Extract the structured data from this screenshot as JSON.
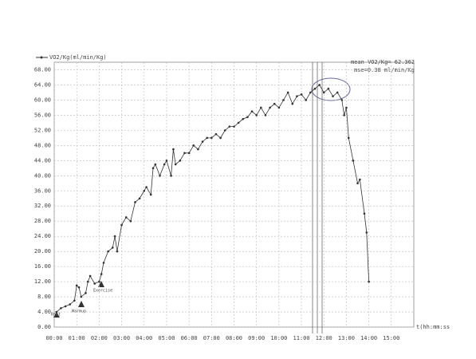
{
  "chart_data": {
    "type": "line",
    "legend_label": "VO2/Kg(ml/min/Kg)",
    "x_label": "t(hh:mm:ss",
    "annotations": [
      "mean VO2/Kg= 62.362",
      "mse=0.38 ml/min/Kg"
    ],
    "phase_labels": [
      "Rest",
      "Warmup",
      "Exercise"
    ],
    "series": [
      {
        "name": "VO2/Kg(ml/min/Kg)",
        "color": "#333333",
        "x": [
          0.1,
          0.3,
          0.5,
          0.7,
          0.9,
          1.0,
          1.1,
          1.2,
          1.4,
          1.5,
          1.6,
          1.8,
          2.0,
          2.1,
          2.2,
          2.4,
          2.6,
          2.7,
          2.8,
          3.0,
          3.2,
          3.4,
          3.6,
          3.8,
          4.0,
          4.1,
          4.3,
          4.4,
          4.5,
          4.7,
          4.9,
          5.0,
          5.2,
          5.3,
          5.4,
          5.6,
          5.8,
          6.0,
          6.2,
          6.4,
          6.6,
          6.8,
          7.0,
          7.2,
          7.4,
          7.6,
          7.8,
          8.0,
          8.2,
          8.4,
          8.6,
          8.8,
          9.0,
          9.2,
          9.4,
          9.6,
          9.8,
          10.0,
          10.2,
          10.4,
          10.6,
          10.8,
          11.0,
          11.2,
          11.4,
          11.6,
          11.8,
          12.0,
          12.2,
          12.4,
          12.6,
          12.8,
          12.9,
          13.0,
          13.1,
          13.3,
          13.5,
          13.6,
          13.8,
          13.9,
          14.0
        ],
        "values": [
          4,
          5,
          5.5,
          6,
          7,
          11,
          10.5,
          8,
          9,
          12,
          13.5,
          11.5,
          12,
          14,
          17,
          20,
          21,
          24,
          20,
          27,
          29,
          28,
          33,
          34,
          36,
          37,
          35,
          42,
          43,
          40,
          43,
          44,
          40,
          47,
          43,
          44,
          46,
          46,
          48,
          47,
          49,
          50,
          50,
          51,
          50,
          52,
          53,
          53,
          54,
          55,
          55.5,
          57,
          56,
          58,
          56,
          58,
          59,
          58,
          60,
          62,
          59,
          61,
          61.5,
          60,
          62,
          63,
          64,
          62,
          63,
          61,
          62,
          60,
          56,
          58,
          50,
          44,
          38,
          39,
          30,
          25,
          12
        ]
      }
    ],
    "xlim": [
      0,
      16
    ],
    "ylim": [
      0,
      70
    ],
    "xticks": [
      {
        "value": 0,
        "label": "00:00"
      },
      {
        "value": 1,
        "label": "01:00"
      },
      {
        "value": 2,
        "label": "02:00"
      },
      {
        "value": 3,
        "label": "03:00"
      },
      {
        "value": 4,
        "label": "04:00"
      },
      {
        "value": 5,
        "label": "05:00"
      },
      {
        "value": 6,
        "label": "06:00"
      },
      {
        "value": 7,
        "label": "07:00"
      },
      {
        "value": 8,
        "label": "08:00"
      },
      {
        "value": 9,
        "label": "09:00"
      },
      {
        "value": 10,
        "label": "10:00"
      },
      {
        "value": 11,
        "label": "11:00"
      },
      {
        "value": 12,
        "label": "12:00"
      },
      {
        "value": 13,
        "label": "13:00"
      },
      {
        "value": 14,
        "label": "14:00"
      },
      {
        "value": 15,
        "label": "15:00"
      }
    ],
    "yticks": [
      {
        "value": 0,
        "label": "0.00"
      },
      {
        "value": 4,
        "label": "4.00"
      },
      {
        "value": 8,
        "label": "8.00"
      },
      {
        "value": 12,
        "label": "12.00"
      },
      {
        "value": 16,
        "label": "16.00"
      },
      {
        "value": 20,
        "label": "20.00"
      },
      {
        "value": 24,
        "label": "24.00"
      },
      {
        "value": 28,
        "label": "28.00"
      },
      {
        "value": 32,
        "label": "32.00"
      },
      {
        "value": 36,
        "label": "36.00"
      },
      {
        "value": 40,
        "label": "40.00"
      },
      {
        "value": 44,
        "label": "44.00"
      },
      {
        "value": 48,
        "label": "48.00"
      },
      {
        "value": 52,
        "label": "52.00"
      },
      {
        "value": 56,
        "label": "56.00"
      },
      {
        "value": 60,
        "label": "60.00"
      },
      {
        "value": 64,
        "label": "64.00"
      },
      {
        "value": 68,
        "label": "68.00"
      }
    ],
    "grid": true
  }
}
